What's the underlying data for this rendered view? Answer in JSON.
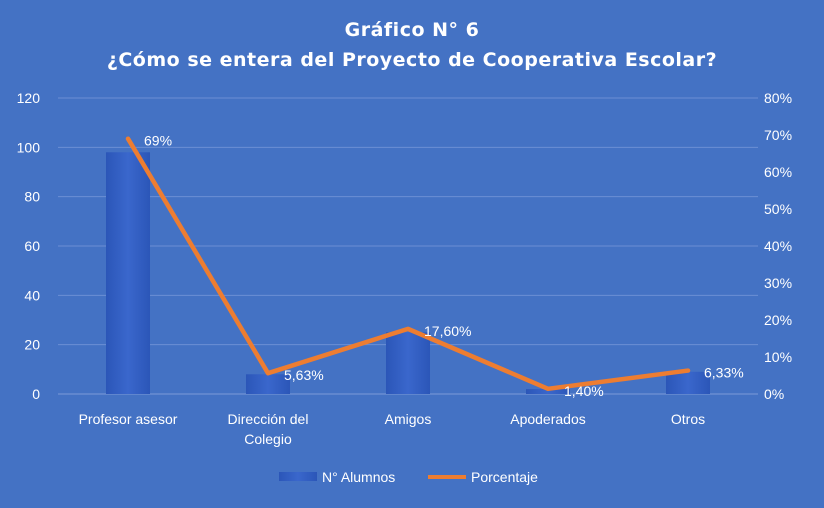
{
  "chart_data": {
    "type": "bar",
    "title": "Gráfico N° 6",
    "subtitle": "¿Cómo se entera del Proyecto de Cooperativa Escolar?",
    "categories": [
      [
        "Profesor asesor"
      ],
      [
        "Dirección del",
        "Colegio"
      ],
      [
        "Amigos"
      ],
      [
        "Apoderados"
      ],
      [
        "Otros"
      ]
    ],
    "series": [
      {
        "name": "N° Alumnos",
        "type": "bar",
        "axis": "left",
        "values": [
          98,
          8,
          25,
          2,
          9
        ]
      },
      {
        "name": "Porcentaje",
        "type": "line",
        "axis": "right",
        "values": [
          69,
          5.63,
          17.6,
          1.4,
          6.33
        ],
        "data_labels": [
          "69%",
          "5,63%",
          "17,60%",
          "1,40%",
          "6,33%"
        ]
      }
    ],
    "y_left": {
      "ylim": [
        0,
        120
      ],
      "ticks": [
        "0",
        "20",
        "40",
        "60",
        "80",
        "100",
        "120"
      ]
    },
    "y_right": {
      "ylim": [
        0,
        80
      ],
      "ticks": [
        "0%",
        "10%",
        "20%",
        "30%",
        "40%",
        "50%",
        "60%",
        "70%",
        "80%"
      ]
    },
    "grid": true,
    "legend_position": "bottom",
    "colors": {
      "background": "#4472c4",
      "bar": "#2e5cbf",
      "line": "#ed7d31",
      "grid": "#6b8fd4",
      "text": "#ffffff"
    }
  }
}
